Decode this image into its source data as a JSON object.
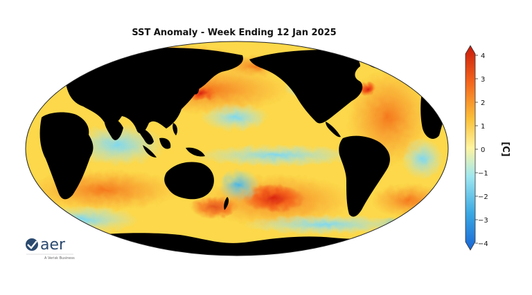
{
  "title": "SST Anomaly - Week Ending 12 Jan 2025",
  "colorbar": {
    "unit": "[C]",
    "ticks": [
      "4",
      "3",
      "2",
      "1",
      "0",
      "−1",
      "−2",
      "−3",
      "−4"
    ],
    "colors": {
      "max": "#c81a0c",
      "high": "#f4651c",
      "mid_high": "#fbc13a",
      "zero": "#fff4a0",
      "mid_low": "#9fe7f0",
      "low": "#3aa8e3",
      "min": "#1966d6"
    }
  },
  "map": {
    "projection": "Robinson",
    "land_color": "#000000",
    "ocean_base_color": "#fcd84a"
  },
  "logo": {
    "name": "aer",
    "tagline": "A Verisk Business"
  }
}
